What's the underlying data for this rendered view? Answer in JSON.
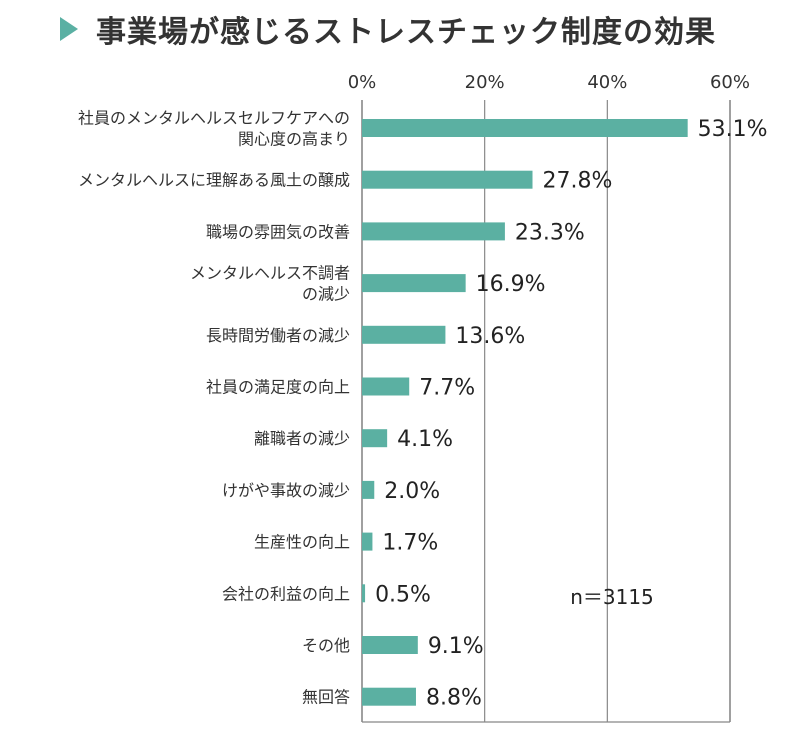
{
  "colors": {
    "bar": "#5bb0a2",
    "accent": "#5ab0a3",
    "grid": "#888888"
  },
  "chart_data": {
    "type": "bar",
    "orientation": "horizontal",
    "title": "事業場が感じるストレスチェック制度の効果",
    "categories": [
      [
        "社員のメンタルヘルスセルフケアへの",
        "関心度の高まり"
      ],
      [
        "メンタルヘルスに理解ある風土の醸成"
      ],
      [
        "職場の雰囲気の改善"
      ],
      [
        "メンタルヘルス不調者",
        "の減少"
      ],
      [
        "長時間労働者の減少"
      ],
      [
        "社員の満足度の向上"
      ],
      [
        "離職者の減少"
      ],
      [
        "けがや事故の減少"
      ],
      [
        "生産性の向上"
      ],
      [
        "会社の利益の向上"
      ],
      [
        "その他"
      ],
      [
        "無回答"
      ]
    ],
    "values": [
      53.1,
      27.8,
      23.3,
      16.9,
      13.6,
      7.7,
      4.1,
      2.0,
      1.7,
      0.5,
      9.1,
      8.8
    ],
    "value_labels": [
      "53.1%",
      "27.8%",
      "23.3%",
      "16.9%",
      "13.6%",
      "7.7%",
      "4.1%",
      "2.0%",
      "1.7%",
      "0.5%",
      "9.1%",
      "8.8%"
    ],
    "xlim": [
      0,
      60
    ],
    "xticks": [
      0,
      20,
      40,
      60
    ],
    "xtick_labels": [
      "0%",
      "20%",
      "40%",
      "60%"
    ],
    "grid": true,
    "note": "n＝3115"
  }
}
